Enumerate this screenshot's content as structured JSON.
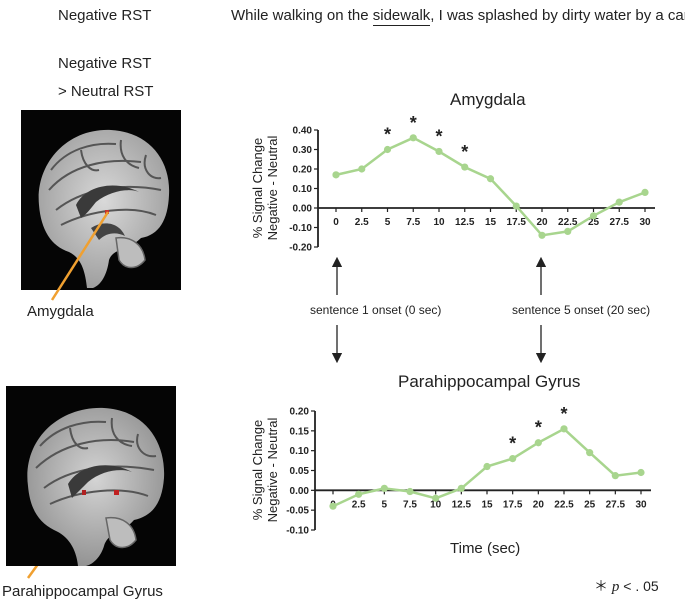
{
  "header": {
    "condition": "Negative RST",
    "sentence_before": "While walking on the ",
    "sentence_underlined": "sidewalk",
    "sentence_after": ", I was splashed by dirty water by a car."
  },
  "contrast": {
    "line1": "Negative RST",
    "line2": "> Neutral RST"
  },
  "region_labels": {
    "amygdala": "Amygdala",
    "parahippocampal": "Parahippocampal Gyrus"
  },
  "annotations": {
    "onset1": "sentence 1 onset (0 sec)",
    "onset5": "sentence 5 onset (20 sec)"
  },
  "x_axis_label": "Time (sec)",
  "significance": {
    "star": "＊",
    "p": "p",
    "rest": " < . 05"
  },
  "colors": {
    "line": "#a8d58e",
    "marker": "#a8d58e",
    "pointer": "#f0a030",
    "axis": "#222222"
  },
  "chart_data": [
    {
      "type": "line",
      "title": "Amygdala",
      "ylabel_line1": "% Signal Change",
      "ylabel_line2": "Negative - Neutral",
      "x": [
        "0",
        "2.5",
        "5",
        "7.5",
        "10",
        "12.5",
        "15",
        "17.5",
        "20",
        "22.5",
        "25",
        "27.5",
        "30"
      ],
      "values": [
        0.17,
        0.2,
        0.3,
        0.36,
        0.29,
        0.21,
        0.15,
        0.01,
        -0.14,
        -0.12,
        -0.04,
        0.03,
        0.08
      ],
      "significant": [
        false,
        false,
        true,
        true,
        true,
        true,
        false,
        false,
        false,
        false,
        false,
        false,
        false
      ],
      "ylim": [
        -0.2,
        0.4
      ],
      "yticks": [
        "0.40",
        "0.30",
        "0.20",
        "0.10",
        "0.00",
        "-0.10",
        "-0.20"
      ],
      "ytick_values": [
        0.4,
        0.3,
        0.2,
        0.1,
        0.0,
        -0.1,
        -0.2
      ],
      "grid": false
    },
    {
      "type": "line",
      "title": "Parahippocampal  Gyrus",
      "ylabel_line1": "% Signal Change",
      "ylabel_line2": "Negative - Neutral",
      "x": [
        "0",
        "2.5",
        "5",
        "7.5",
        "10",
        "12.5",
        "15",
        "17.5",
        "20",
        "22.5",
        "25",
        "27.5",
        "30"
      ],
      "values": [
        -0.04,
        -0.01,
        0.005,
        -0.003,
        -0.02,
        0.005,
        0.06,
        0.08,
        0.12,
        0.155,
        0.095,
        0.037,
        0.045
      ],
      "significant": [
        false,
        false,
        false,
        false,
        false,
        false,
        false,
        true,
        true,
        true,
        false,
        false,
        false
      ],
      "ylim": [
        -0.1,
        0.2
      ],
      "yticks": [
        "0.20",
        "0.15",
        "0.10",
        "0.05",
        "0.00",
        "-0.05",
        "-0.10"
      ],
      "ytick_values": [
        0.2,
        0.15,
        0.1,
        0.05,
        0.0,
        -0.05,
        -0.1
      ],
      "grid": false
    }
  ]
}
